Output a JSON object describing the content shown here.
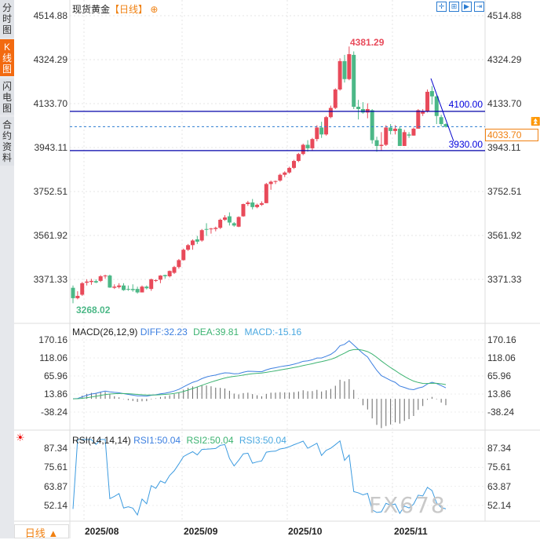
{
  "sidebar": {
    "tabs": [
      {
        "label": "分时图"
      },
      {
        "label": "K线图",
        "active": true
      },
      {
        "label": "闪电图"
      },
      {
        "label": "合约资料"
      }
    ],
    "bottom_tab": "日线",
    "bottom_icon": "triangle-up-icon"
  },
  "header": {
    "title": "现货黄金",
    "period": "【日线】",
    "toolbar_icons": [
      "crosshair-icon",
      "fit-range-icon",
      "play-icon",
      "jump-to-end-icon"
    ]
  },
  "colors": {
    "up": "#e84a5a",
    "down": "#4cb887",
    "diff": "#3c7fe0",
    "dea": "#3cb371",
    "accent": "#f08010",
    "line": "#0000cc"
  },
  "main": {
    "y_ticks": [
      "4514.88",
      "4324.29",
      "4133.70",
      "3943.11",
      "3752.51",
      "3561.92",
      "3371.33"
    ],
    "high_label": "4381.29",
    "low_label": "3268.02",
    "levels": [
      {
        "label": "4100.00",
        "value": 4100
      },
      {
        "label": "3930.00",
        "value": 3930
      }
    ],
    "last_price": "4033.70"
  },
  "macd": {
    "label": "MACD(26,12,9)",
    "diff": "DIFF:32.23",
    "dea": "DEA:39.81",
    "macd": "MACD:-15.16",
    "y_ticks": [
      "170.16",
      "118.06",
      "65.96",
      "13.86",
      "-38.24"
    ]
  },
  "rsi": {
    "label": "RSI(14,14,14)",
    "rsi1": "RSI1:50.04",
    "rsi2": "RSI2:50.04",
    "rsi3": "RSI3:50.04",
    "y_ticks": [
      "87.34",
      "75.61",
      "63.87",
      "52.14"
    ],
    "icon": "sun-settings-icon"
  },
  "x_labels": [
    "2025/08",
    "2025/09",
    "2025/10",
    "2025/11"
  ],
  "watermark": "FX678",
  "chart_data": {
    "type": "candlestick",
    "title": "现货黄金【日线】",
    "ylim": [
      3371.33,
      4514.88
    ],
    "ohlc": [
      [
        3335,
        3345,
        3268.02,
        3290
      ],
      [
        3290,
        3320,
        3285,
        3300
      ],
      [
        3305,
        3360,
        3300,
        3355
      ],
      [
        3357,
        3372,
        3345,
        3362
      ],
      [
        3360,
        3374,
        3348,
        3365
      ],
      [
        3364,
        3372,
        3355,
        3358
      ],
      [
        3365,
        3390,
        3360,
        3385
      ],
      [
        3385,
        3392,
        3375,
        3388
      ],
      [
        3388,
        3392,
        3335,
        3336
      ],
      [
        3335,
        3350,
        3330,
        3340
      ],
      [
        3338,
        3355,
        3332,
        3345
      ],
      [
        3345,
        3355,
        3322,
        3325
      ],
      [
        3330,
        3345,
        3322,
        3327
      ],
      [
        3330,
        3350,
        3318,
        3325
      ],
      [
        3330,
        3340,
        3310,
        3315
      ],
      [
        3315,
        3345,
        3315,
        3340
      ],
      [
        3340,
        3345,
        3328,
        3333
      ],
      [
        3330,
        3375,
        3322,
        3372
      ],
      [
        3365,
        3372,
        3360,
        3368
      ],
      [
        3370,
        3390,
        3355,
        3388
      ],
      [
        3390,
        3392,
        3375,
        3385
      ],
      [
        3385,
        3410,
        3380,
        3408
      ],
      [
        3400,
        3430,
        3395,
        3425
      ],
      [
        3425,
        3460,
        3418,
        3455
      ],
      [
        3455,
        3505,
        3453,
        3500
      ],
      [
        3500,
        3525,
        3495,
        3520
      ],
      [
        3520,
        3545,
        3500,
        3540
      ],
      [
        3545,
        3560,
        3525,
        3535
      ],
      [
        3540,
        3590,
        3535,
        3585
      ],
      [
        3590,
        3615,
        3560,
        3588
      ],
      [
        3590,
        3595,
        3570,
        3592
      ],
      [
        3590,
        3600,
        3580,
        3595
      ],
      [
        3595,
        3635,
        3590,
        3630
      ],
      [
        3630,
        3650,
        3625,
        3640
      ],
      [
        3645,
        3662,
        3605,
        3618
      ],
      [
        3615,
        3620,
        3600,
        3605
      ],
      [
        3600,
        3645,
        3598,
        3642
      ],
      [
        3645,
        3700,
        3643,
        3698
      ],
      [
        3698,
        3712,
        3690,
        3705
      ],
      [
        3705,
        3720,
        3675,
        3685
      ],
      [
        3685,
        3700,
        3680,
        3695
      ],
      [
        3695,
        3710,
        3690,
        3702
      ],
      [
        3702,
        3790,
        3702,
        3785
      ],
      [
        3785,
        3800,
        3760,
        3795
      ],
      [
        3795,
        3800,
        3785,
        3798
      ],
      [
        3800,
        3830,
        3795,
        3825
      ],
      [
        3825,
        3840,
        3815,
        3835
      ],
      [
        3835,
        3860,
        3830,
        3855
      ],
      [
        3855,
        3890,
        3850,
        3885
      ],
      [
        3885,
        3920,
        3880,
        3915
      ],
      [
        3915,
        3960,
        3910,
        3955
      ],
      [
        3955,
        3975,
        3925,
        3940
      ],
      [
        3940,
        3985,
        3930,
        3980
      ],
      [
        3980,
        4040,
        3970,
        4030
      ],
      [
        4030,
        4055,
        3985,
        4000
      ],
      [
        4000,
        4080,
        3995,
        4075
      ],
      [
        4075,
        4125,
        4070,
        4115
      ],
      [
        4115,
        4200,
        4110,
        4195
      ],
      [
        4195,
        4330,
        4190,
        4318
      ],
      [
        4318,
        4345,
        4225,
        4240
      ],
      [
        4240,
        4381.29,
        4235,
        4348
      ],
      [
        4345,
        4360,
        4110,
        4120
      ],
      [
        4120,
        4150,
        4065,
        4110
      ],
      [
        4110,
        4140,
        4090,
        4095
      ],
      [
        4095,
        4135,
        4070,
        4110
      ],
      [
        4105,
        4110,
        3960,
        3975
      ],
      [
        3975,
        3990,
        3925,
        3950
      ],
      [
        3950,
        4010,
        3930,
        3955
      ],
      [
        3955,
        4040,
        3950,
        4030
      ],
      [
        4030,
        4045,
        4000,
        4015
      ],
      [
        4015,
        4040,
        4000,
        4025
      ],
      [
        4025,
        4035,
        3955,
        3950
      ],
      [
        3950,
        4020,
        3950,
        4010
      ],
      [
        4000,
        4010,
        3985,
        3995
      ],
      [
        3995,
        4030,
        3995,
        4025
      ],
      [
        4025,
        4110,
        4025,
        4105
      ],
      [
        4090,
        4110,
        4080,
        4100
      ],
      [
        4100,
        4195,
        4095,
        4185
      ],
      [
        4188,
        4210,
        4130,
        4165
      ],
      [
        4165,
        4170,
        4045,
        4080
      ],
      [
        4075,
        4085,
        4035,
        4045
      ],
      [
        4045,
        4048,
        4030,
        4033.7
      ]
    ]
  }
}
